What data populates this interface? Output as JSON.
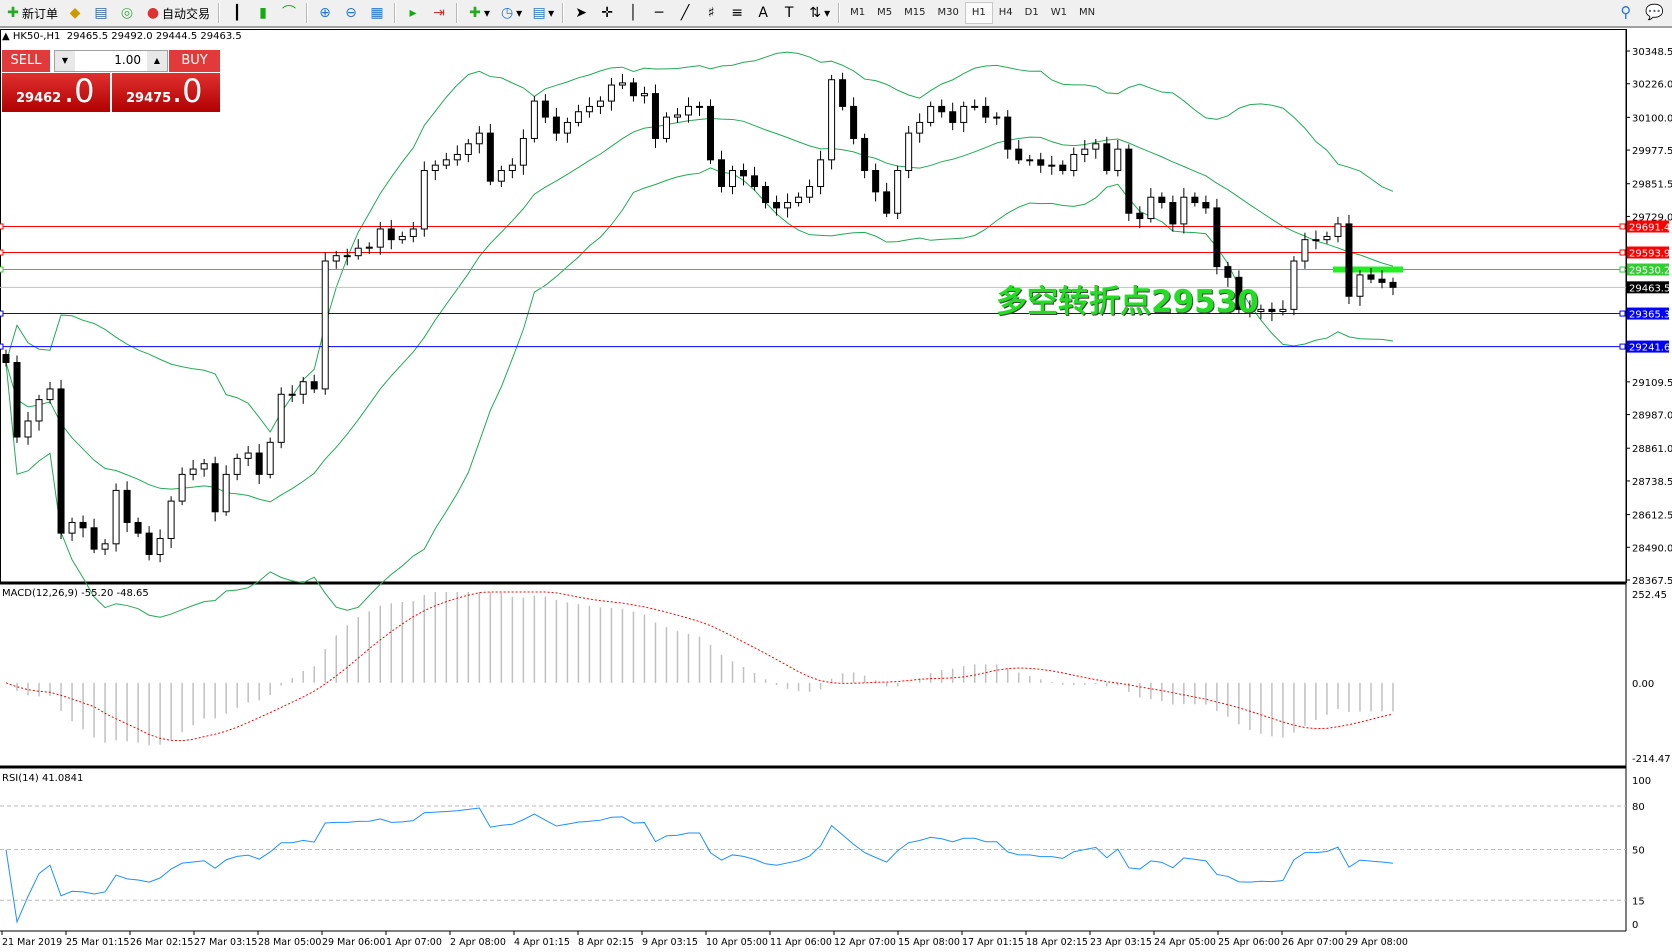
{
  "toolbar": {
    "new_order": "新订单",
    "auto_trading": "自动交易",
    "icons": [
      "new-order-icon",
      "history-icon",
      "market-watch-icon",
      "signals-icon",
      "auto-trading-icon",
      "bar-chart-icon",
      "candlestick-icon",
      "line-chart-icon",
      "zoom-in-icon",
      "zoom-out-icon",
      "tile-windows-icon",
      "chart-shift-icon",
      "autoscroll-icon",
      "indicators-icon",
      "periods-icon",
      "templates-icon",
      "cursor-icon",
      "crosshair-icon",
      "vertical-line-icon",
      "horizontal-line-icon",
      "trendline-icon",
      "equidistant-channel-icon",
      "fibonacci-icon",
      "text-icon",
      "text-label-icon",
      "arrows-icon",
      "search-icon",
      "chat-icon"
    ],
    "timeframes": [
      "M1",
      "M5",
      "M15",
      "M30",
      "H1",
      "H4",
      "D1",
      "W1",
      "MN"
    ],
    "active_timeframe": "H1"
  },
  "symbol_info": {
    "symbol": "HK50-,H1",
    "open": "29465.5",
    "high": "29492.0",
    "low": "29444.5",
    "close": "29463.5"
  },
  "trade_panel": {
    "sell_label": "SELL",
    "buy_label": "BUY",
    "lot": "1.00",
    "sell_price_main": "29462",
    "sell_price_big": ".0",
    "buy_price_main": "29475",
    "buy_price_big": ".0",
    "color": "#e23a3a"
  },
  "annotation": "多空转折点29530",
  "chart_data": [
    {
      "type": "candlestick",
      "title": "HK50-,H1",
      "ylim": [
        28367.5,
        30348.5
      ],
      "price_ticks": [
        "30348.5",
        "30226.0",
        "30100.0",
        "29977.5",
        "29851.5",
        "29729.0",
        "29109.5",
        "28987.0",
        "28861.0",
        "28738.5",
        "28612.5",
        "28490.0",
        "28367.5"
      ],
      "closes": [
        29182,
        28903,
        28963,
        29043,
        29083,
        28543,
        28583,
        28563,
        28483,
        28503,
        28703,
        28583,
        28543,
        28463,
        28523,
        28663,
        28763,
        28783,
        28803,
        28623,
        28763,
        28823,
        28843,
        28763,
        28883,
        29063,
        29063,
        29110,
        29083,
        29562,
        29582,
        29582,
        29610,
        29614,
        29682,
        29642,
        29654,
        29682,
        29901,
        29921,
        29941,
        29961,
        30001,
        30041,
        29861,
        29901,
        29921,
        30021,
        30161,
        30101,
        30041,
        30081,
        30121,
        30141,
        30161,
        30221,
        30229,
        30181,
        30189,
        30021,
        30101,
        30109,
        30141,
        30141,
        29941,
        29841,
        29901,
        29881,
        29841,
        29781,
        29761,
        29781,
        29801,
        29841,
        29941,
        30241,
        30141,
        30021,
        29901,
        29821,
        29741,
        29901,
        30041,
        30081,
        30141,
        30121,
        30081,
        30141,
        30141,
        30101,
        30101,
        29981,
        29941,
        29941,
        29921,
        29921,
        29901,
        29961,
        29981,
        30001,
        29901,
        29981,
        29741,
        29721,
        29801,
        29781,
        29701,
        29801,
        29781,
        29761,
        29541,
        29501,
        29381,
        29373,
        29381,
        29373,
        29381,
        29562,
        29642,
        29642,
        29654,
        29701,
        29430,
        29510,
        29494,
        29482,
        29463.5
      ],
      "indicator": "Bollinger Bands",
      "band_color": "#22aa55",
      "levels": [
        {
          "value": "29691.4",
          "color": "#ff0000"
        },
        {
          "value": "29593.9",
          "color": "#ff0000"
        },
        {
          "value": "29530.2",
          "color": "#33cc33"
        },
        {
          "value": "29463.5",
          "color": "#000000",
          "line_color": "#c0c0c0"
        },
        {
          "value": "29365.3",
          "color": "#0000ff"
        },
        {
          "value": "29241.6",
          "color": "#0000ff"
        }
      ],
      "time_labels": [
        "21 Mar 2019",
        "25 Mar 01:15",
        "26 Mar 02:15",
        "27 Mar 03:15",
        "28 Mar 05:00",
        "29 Mar 06:00",
        "1 Apr 07:00",
        "2 Apr 08:00",
        "4 Apr 01:15",
        "8 Apr 02:15",
        "9 Apr 03:15",
        "10 Apr 05:00",
        "11 Apr 06:00",
        "12 Apr 07:00",
        "15 Apr 08:00",
        "17 Apr 01:15",
        "18 Apr 02:15",
        "23 Apr 03:15",
        "24 Apr 05:00",
        "25 Apr 06:00",
        "26 Apr 07:00",
        "29 Apr 08:00"
      ]
    },
    {
      "type": "bar",
      "title": "MACD(12,26,9) -55.20 -48.65",
      "params": [
        12,
        26,
        9
      ],
      "main": "-55.20",
      "signal": "-48.65",
      "ylim": [
        -214.47,
        252.45
      ],
      "ticks": [
        "252.45",
        "0.00",
        "-214.47"
      ],
      "hist_color": "#c0c0c0",
      "signal_color": "#ff0000"
    },
    {
      "type": "line",
      "title": "RSI(14) 41.0841",
      "period": 14,
      "value": "41.0841",
      "ylim": [
        0,
        100
      ],
      "ticks": [
        "100",
        "80",
        "50",
        "15",
        "0"
      ],
      "levels": [
        80,
        50,
        15
      ],
      "color": "#1e90ff"
    }
  ]
}
